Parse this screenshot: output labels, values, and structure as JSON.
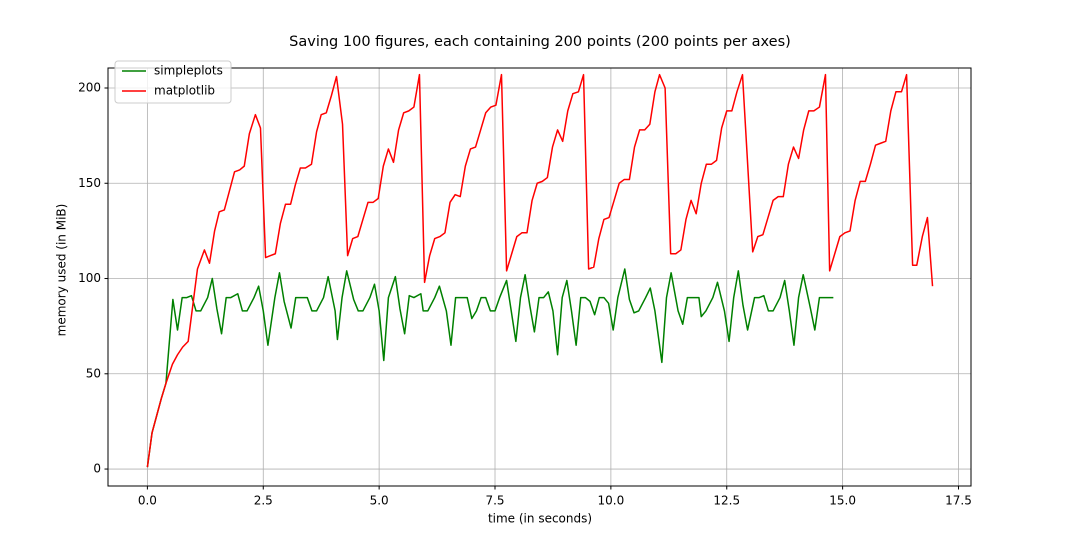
{
  "chart_data": {
    "type": "line",
    "title": "Saving 100 figures, each containing 200 points (200 points per axes)",
    "x_label": "time (in seconds)",
    "y_label": "memory used (in MiB)",
    "xlim": [
      -0.85,
      17.77
    ],
    "ylim": [
      -8.9,
      210.5
    ],
    "xticks": [
      {
        "value": 0,
        "label": "0.0"
      },
      2.5,
      {
        "value": 5,
        "label": "5.0"
      },
      7.5,
      {
        "value": 10,
        "label": "10.0"
      },
      12.5,
      {
        "value": 15,
        "label": "15.0"
      },
      17.5
    ],
    "yticks": [
      0,
      50,
      100,
      150,
      200
    ],
    "grid": true,
    "legend": "upper-left",
    "series": [
      {
        "name": "simpleplots",
        "color": "#008000",
        "x": [
          0.0,
          0.1,
          0.2,
          0.3,
          0.4,
          0.55,
          0.65,
          0.75,
          0.85,
          0.95,
          1.05,
          1.15,
          1.3,
          1.4,
          1.5,
          1.6,
          1.7,
          1.8,
          1.95,
          2.05,
          2.15,
          2.3,
          2.4,
          2.5,
          2.6,
          2.75,
          2.85,
          2.95,
          3.1,
          3.2,
          3.3,
          3.45,
          3.55,
          3.65,
          3.8,
          3.9,
          4.05,
          4.1,
          4.2,
          4.3,
          4.45,
          4.55,
          4.65,
          4.8,
          4.9,
          5.0,
          5.1,
          5.2,
          5.35,
          5.45,
          5.55,
          5.65,
          5.75,
          5.9,
          5.95,
          6.05,
          6.2,
          6.3,
          6.45,
          6.55,
          6.65,
          6.75,
          6.9,
          7.0,
          7.1,
          7.2,
          7.3,
          7.4,
          7.5,
          7.6,
          7.75,
          7.85,
          7.95,
          8.05,
          8.15,
          8.25,
          8.35,
          8.45,
          8.55,
          8.65,
          8.75,
          8.85,
          8.95,
          9.05,
          9.15,
          9.25,
          9.35,
          9.45,
          9.55,
          9.65,
          9.75,
          9.85,
          9.95,
          10.05,
          10.15,
          10.3,
          10.4,
          10.5,
          10.6,
          10.75,
          10.85,
          10.95,
          11.1,
          11.2,
          11.3,
          11.45,
          11.55,
          11.65,
          11.75,
          11.9,
          11.95,
          12.05,
          12.2,
          12.3,
          12.45,
          12.55,
          12.65,
          12.75,
          12.85,
          12.95,
          13.1,
          13.2,
          13.3,
          13.4,
          13.5,
          13.65,
          13.75,
          13.85,
          13.95,
          14.05,
          14.15,
          14.3,
          14.4,
          14.5,
          14.6,
          14.7,
          14.8
        ],
        "values": [
          1,
          19,
          28,
          37,
          45,
          89,
          73,
          90,
          90,
          91,
          83,
          83,
          90,
          100,
          84,
          71,
          90,
          90,
          92,
          83,
          83,
          90,
          96,
          83,
          65,
          90,
          103,
          88,
          74,
          90,
          90,
          90,
          83,
          83,
          90,
          101,
          83,
          68,
          90,
          104,
          89,
          83,
          83,
          90,
          97,
          83,
          57,
          90,
          101,
          84,
          71,
          91,
          90,
          92,
          83,
          83,
          90,
          96,
          83,
          65,
          90,
          90,
          90,
          79,
          83,
          90,
          90,
          83,
          83,
          90,
          99,
          83,
          67,
          90,
          102,
          86,
          72,
          90,
          90,
          93,
          83,
          60,
          90,
          99,
          83,
          65,
          90,
          90,
          88,
          81,
          90,
          90,
          87,
          73,
          90,
          105,
          89,
          82,
          83,
          90,
          95,
          83,
          56,
          90,
          103,
          83,
          76,
          90,
          90,
          90,
          80,
          83,
          90,
          98,
          83,
          67,
          90,
          104,
          86,
          73,
          90,
          90,
          91,
          83,
          83,
          90,
          99,
          83,
          65,
          90,
          102,
          85,
          73,
          90,
          90,
          90,
          90
        ]
      },
      {
        "name": "matplotlib",
        "color": "#ff0000",
        "x": [
          0.0,
          0.1,
          0.2,
          0.3,
          0.4,
          0.54,
          0.65,
          0.76,
          0.88,
          1.08,
          1.23,
          1.34,
          1.45,
          1.55,
          1.66,
          1.77,
          1.88,
          1.99,
          2.09,
          2.2,
          2.33,
          2.44,
          2.55,
          2.65,
          2.76,
          2.87,
          2.98,
          3.09,
          3.19,
          3.3,
          3.41,
          3.54,
          3.65,
          3.75,
          3.86,
          3.97,
          4.08,
          4.21,
          4.32,
          4.43,
          4.54,
          4.65,
          4.76,
          4.87,
          4.98,
          5.09,
          5.2,
          5.31,
          5.42,
          5.53,
          5.64,
          5.75,
          5.87,
          5.98,
          6.09,
          6.2,
          6.31,
          6.42,
          6.53,
          6.64,
          6.75,
          6.86,
          6.97,
          7.08,
          7.19,
          7.3,
          7.41,
          7.52,
          7.64,
          7.75,
          7.86,
          7.97,
          8.08,
          8.19,
          8.3,
          8.41,
          8.52,
          8.63,
          8.74,
          8.85,
          8.96,
          9.07,
          9.18,
          9.3,
          9.41,
          9.52,
          9.63,
          9.74,
          9.85,
          9.96,
          10.07,
          10.18,
          10.29,
          10.4,
          10.51,
          10.62,
          10.73,
          10.84,
          10.95,
          11.05,
          11.17,
          11.29,
          11.4,
          11.51,
          11.62,
          11.73,
          11.84,
          11.95,
          12.06,
          12.17,
          12.28,
          12.39,
          12.5,
          12.61,
          12.72,
          12.84,
          13.06,
          13.17,
          13.28,
          13.39,
          13.5,
          13.61,
          13.72,
          13.83,
          13.94,
          14.05,
          14.16,
          14.27,
          14.38,
          14.5,
          14.63,
          14.72,
          14.83,
          14.94,
          15.05,
          15.16,
          15.27,
          15.38,
          15.49,
          15.6,
          15.71,
          15.82,
          15.93,
          16.04,
          16.15,
          16.27,
          16.38,
          16.51,
          16.6,
          16.72,
          16.83,
          16.94
        ],
        "values": [
          1,
          19,
          28,
          37,
          45,
          55,
          60,
          64,
          67,
          105,
          115,
          108,
          125,
          135,
          136,
          146,
          156,
          157,
          159,
          176,
          186,
          179,
          111,
          112,
          113,
          129,
          139,
          139,
          149,
          158,
          158,
          160,
          177,
          186,
          187,
          196,
          206,
          181,
          112,
          121,
          122,
          131,
          140,
          140,
          142,
          159,
          168,
          161,
          178,
          187,
          188,
          190,
          207,
          98,
          112,
          121,
          122,
          124,
          140,
          144,
          143,
          159,
          168,
          169,
          178,
          187,
          190,
          191,
          207,
          104,
          113,
          122,
          124,
          124,
          141,
          150,
          151,
          153,
          169,
          178,
          172,
          188,
          197,
          198,
          207,
          105,
          106,
          121,
          131,
          132,
          141,
          150,
          152,
          152,
          169,
          178,
          178,
          181,
          198,
          207,
          200,
          113,
          113,
          115,
          131,
          141,
          134,
          150,
          160,
          160,
          162,
          179,
          188,
          188,
          198,
          207,
          114,
          122,
          123,
          132,
          141,
          143,
          143,
          160,
          169,
          163,
          178,
          188,
          188,
          190,
          207,
          104,
          113,
          122,
          124,
          125,
          141,
          151,
          151,
          160,
          170,
          171,
          172,
          188,
          198,
          198,
          207,
          107,
          107,
          122,
          132,
          96
        ]
      }
    ]
  }
}
